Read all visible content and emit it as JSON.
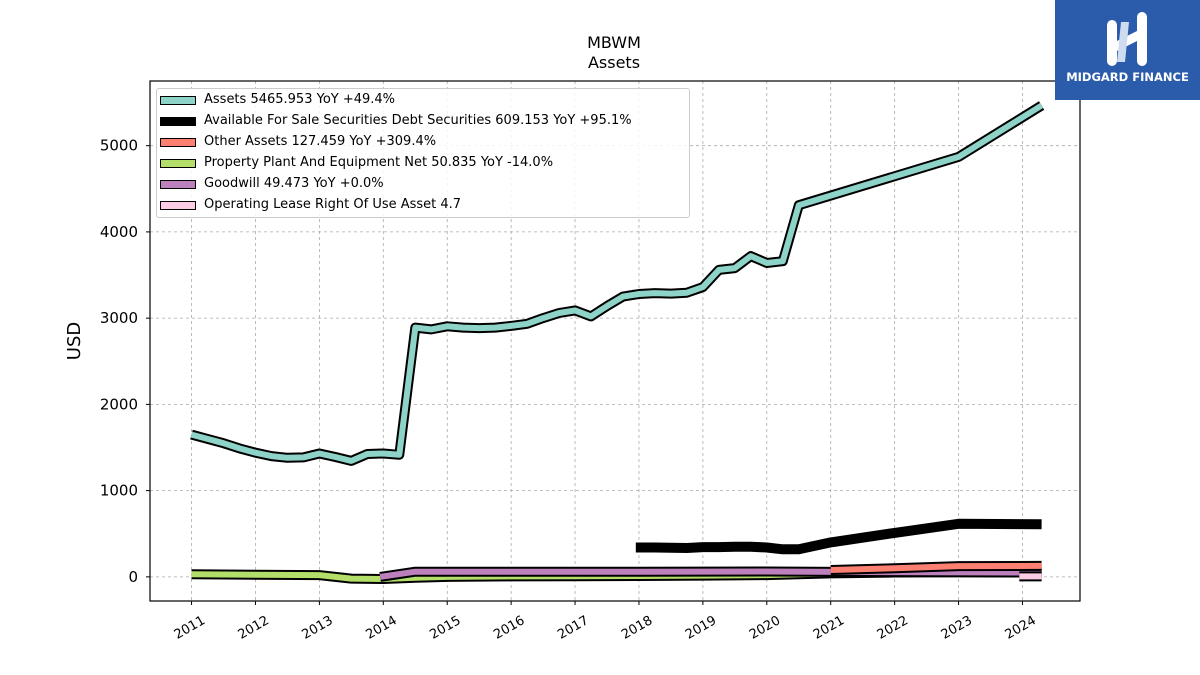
{
  "brand": {
    "name": "MIDGARD FINANCE",
    "logo_bg": "#2a5cab"
  },
  "chart_data": {
    "type": "line",
    "title": "MBWM",
    "subtitle": "Assets",
    "xlabel": "",
    "ylabel": "USD",
    "xlim": [
      2010.35,
      2024.9
    ],
    "ylim": [
      -280,
      5750
    ],
    "grid": true,
    "legend_position": "top-left",
    "x_ticks": [
      "2011",
      "2012",
      "2013",
      "2014",
      "2015",
      "2016",
      "2017",
      "2018",
      "2019",
      "2020",
      "2021",
      "2022",
      "2023",
      "2024"
    ],
    "y_ticks": [
      "0",
      "1000",
      "2000",
      "3000",
      "4000",
      "5000"
    ],
    "series": [
      {
        "name": "Assets",
        "legend": "Assets  5465.953 YoY +49.4%",
        "color": "#8dd3c7",
        "points": [
          [
            2011.0,
            1650
          ],
          [
            2011.25,
            1600
          ],
          [
            2011.5,
            1550
          ],
          [
            2011.75,
            1490
          ],
          [
            2012.0,
            1440
          ],
          [
            2012.25,
            1400
          ],
          [
            2012.5,
            1380
          ],
          [
            2012.75,
            1385
          ],
          [
            2013.0,
            1430
          ],
          [
            2013.25,
            1390
          ],
          [
            2013.5,
            1345
          ],
          [
            2013.75,
            1425
          ],
          [
            2014.0,
            1430
          ],
          [
            2014.25,
            1415
          ],
          [
            2014.5,
            2890
          ],
          [
            2014.75,
            2870
          ],
          [
            2015.0,
            2905
          ],
          [
            2015.25,
            2890
          ],
          [
            2015.5,
            2885
          ],
          [
            2015.75,
            2890
          ],
          [
            2016.0,
            2910
          ],
          [
            2016.25,
            2935
          ],
          [
            2016.5,
            3000
          ],
          [
            2016.75,
            3060
          ],
          [
            2017.0,
            3090
          ],
          [
            2017.25,
            3020
          ],
          [
            2017.5,
            3140
          ],
          [
            2017.75,
            3250
          ],
          [
            2018.0,
            3280
          ],
          [
            2018.25,
            3290
          ],
          [
            2018.5,
            3285
          ],
          [
            2018.75,
            3295
          ],
          [
            2019.0,
            3360
          ],
          [
            2019.25,
            3560
          ],
          [
            2019.5,
            3580
          ],
          [
            2019.75,
            3720
          ],
          [
            2020.0,
            3640
          ],
          [
            2020.25,
            3660
          ],
          [
            2020.5,
            4310
          ],
          [
            2023.0,
            4870
          ],
          [
            2024.3,
            5466
          ]
        ]
      },
      {
        "name": "Available For Sale Securities Debt Securities",
        "legend": "Available For Sale Securities Debt Securities  609.153 YoY +95.1%",
        "color": "#000000",
        "points": [
          [
            2017.95,
            340
          ],
          [
            2018.25,
            340
          ],
          [
            2018.75,
            335
          ],
          [
            2019.0,
            345
          ],
          [
            2019.25,
            345
          ],
          [
            2019.5,
            350
          ],
          [
            2019.75,
            350
          ],
          [
            2020.0,
            340
          ],
          [
            2020.25,
            320
          ],
          [
            2020.5,
            320
          ],
          [
            2021.0,
            400
          ],
          [
            2022.0,
            510
          ],
          [
            2023.0,
            615
          ],
          [
            2024.3,
            609
          ]
        ]
      },
      {
        "name": "Other Assets",
        "legend": "Other Assets  127.459 YoY +309.4%",
        "color": "#fb8072",
        "points": [
          [
            2021.0,
            80
          ],
          [
            2022.0,
            100
          ],
          [
            2023.0,
            125
          ],
          [
            2024.3,
            127
          ]
        ]
      },
      {
        "name": "Property Plant And Equipment Net",
        "legend": "Property Plant And Equipment Net  50.835 YoY -14.0%",
        "color": "#b3de69",
        "points": [
          [
            2011.0,
            30
          ],
          [
            2012.0,
            25
          ],
          [
            2013.0,
            20
          ],
          [
            2013.5,
            -20
          ],
          [
            2014.0,
            -25
          ],
          [
            2014.5,
            -10
          ],
          [
            2015.0,
            0
          ],
          [
            2016.0,
            5
          ],
          [
            2017.0,
            8
          ],
          [
            2018.0,
            10
          ],
          [
            2019.0,
            15
          ],
          [
            2020.0,
            20
          ],
          [
            2021.0,
            40
          ],
          [
            2022.0,
            50
          ],
          [
            2023.0,
            55
          ],
          [
            2024.3,
            51
          ]
        ]
      },
      {
        "name": "Goodwill",
        "legend": "Goodwill  49.473 YoY +0.0%",
        "color": "#bc80bd",
        "points": [
          [
            2013.95,
            0
          ],
          [
            2014.5,
            60
          ],
          [
            2016.0,
            60
          ],
          [
            2018.0,
            60
          ],
          [
            2020.0,
            62
          ],
          [
            2022.0,
            55
          ],
          [
            2024.3,
            49
          ]
        ]
      },
      {
        "name": "Operating Lease Right Of Use Asset",
        "legend": "Operating Lease Right Of Use Asset  4.7",
        "color": "#fccde5",
        "points": [
          [
            2023.95,
            4.7
          ],
          [
            2024.3,
            4.7
          ]
        ]
      }
    ]
  }
}
